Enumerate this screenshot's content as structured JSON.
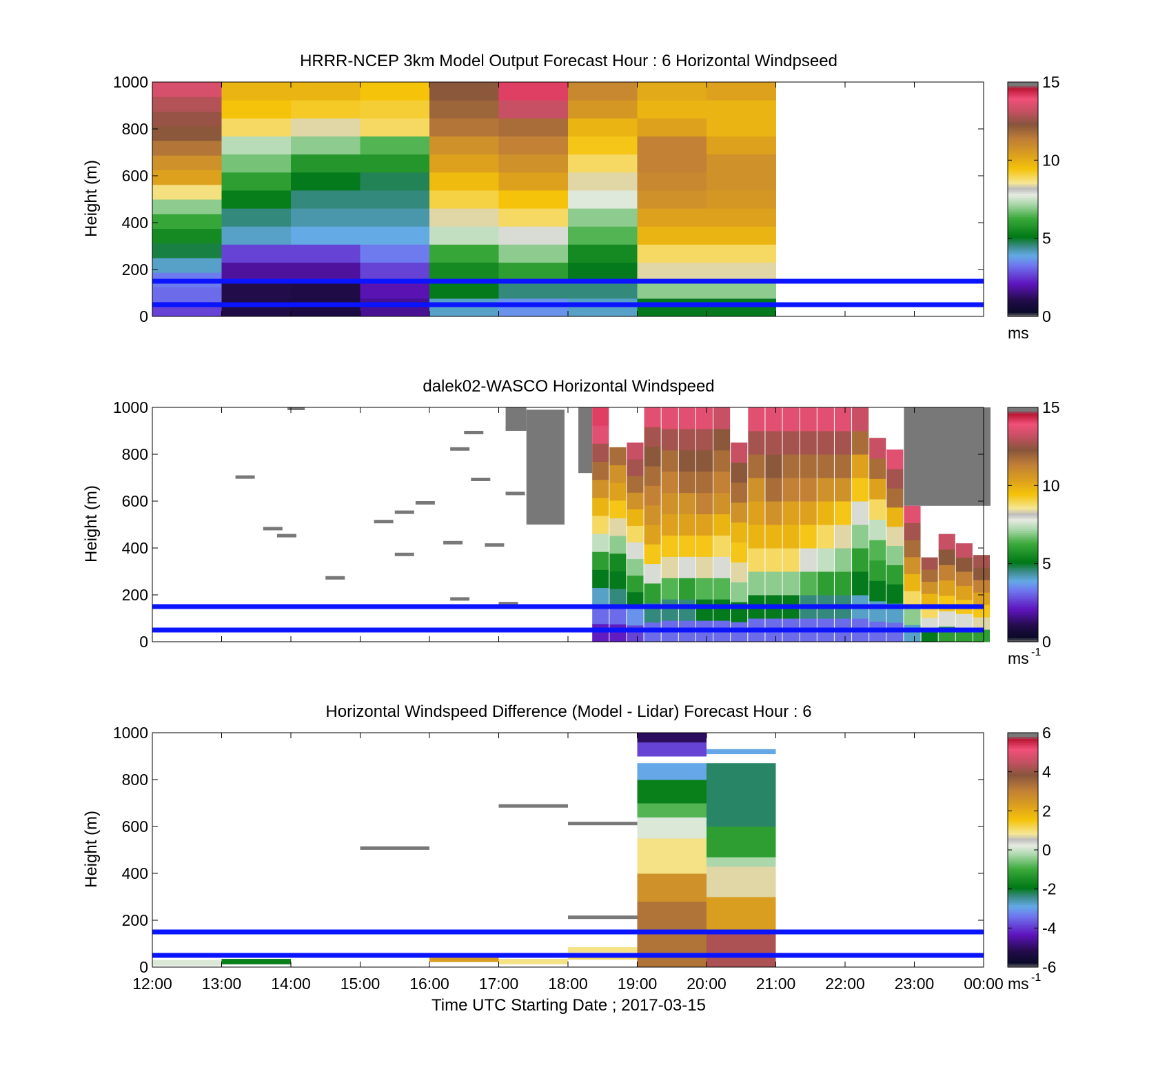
{
  "chart_data": [
    {
      "type": "heatmap",
      "title": "HRRR-NCEP 3km Model Output   Forecast Hour : 6 Horizontal Windpseed",
      "ylabel": "Height (m)",
      "ylim": [
        0,
        1000
      ],
      "yticks": [
        "0",
        "200",
        "400",
        "600",
        "800",
        "1000"
      ],
      "xlim_hours_utc": [
        12,
        24
      ],
      "colorbar": {
        "min": 0,
        "max": 15,
        "ticks": [
          "0",
          "5",
          "10",
          "15"
        ],
        "unit": "ms",
        "unit_sup": ""
      },
      "reference_lines_m": [
        150,
        50
      ],
      "reference_line_color": "#0a14ff",
      "columns": [
        {
          "start": 12,
          "end": 13,
          "speeds": [
            2.5,
            3,
            3.2,
            4,
            4.8,
            5.5,
            6.2,
            7,
            8.8,
            10.5,
            11,
            11.8,
            12.5,
            12.8,
            13.2,
            13.8
          ]
        },
        {
          "start": 13,
          "end": 14,
          "speeds": [
            0.7,
            0.8,
            1.6,
            2.5,
            4,
            4.5,
            5.2,
            6,
            6.8,
            7.4,
            9,
            9.6,
            10
          ]
        },
        {
          "start": 14,
          "end": 15,
          "speeds": [
            0.6,
            0.7,
            1.6,
            2.5,
            3.8,
            4.2,
            4.5,
            5,
            5.8,
            7,
            8.5,
            9.4,
            10
          ]
        },
        {
          "start": 15,
          "end": 16,
          "speeds": [
            1.5,
            1.8,
            2.5,
            3.2,
            3.8,
            4.2,
            4.5,
            4.7,
            5.8,
            6.5,
            9,
            9.3,
            9.6
          ]
        },
        {
          "start": 16,
          "end": 17,
          "speeds": [
            4,
            5,
            5.5,
            6.2,
            7.5,
            8.5,
            9.2,
            9.8,
            10.5,
            11,
            11.8,
            12.2,
            12.5
          ]
        },
        {
          "start": 17,
          "end": 18,
          "speeds": [
            3.5,
            4.5,
            6,
            7,
            8,
            9,
            9.6,
            10.5,
            11,
            11.5,
            12,
            13.5,
            14.5
          ]
        },
        {
          "start": 18,
          "end": 19,
          "speeds": [
            4,
            4.5,
            5,
            5.5,
            6.5,
            7,
            7.8,
            8.5,
            9,
            9.5,
            10,
            10.8,
            11.3
          ]
        },
        {
          "start": 19,
          "end": 20,
          "speeds": [
            5,
            7,
            8.5,
            9,
            10,
            10.5,
            11,
            11.3,
            11.5,
            11.5,
            10.5,
            10,
            10.3
          ]
        },
        {
          "start": 20,
          "end": 21,
          "speeds": [
            5,
            7,
            8.5,
            9,
            10,
            10.5,
            10.8,
            11,
            11,
            10.5,
            10,
            10,
            10.5
          ]
        }
      ]
    },
    {
      "type": "heatmap",
      "title": "dalek02-WASCO  Horizontal Windspeed",
      "ylabel": "Height (m)",
      "ylim": [
        0,
        1000
      ],
      "yticks": [
        "0",
        "200",
        "400",
        "600",
        "800",
        "1000"
      ],
      "xlim_hours_utc": [
        12,
        24
      ],
      "colorbar": {
        "min": 0,
        "max": 15,
        "ticks": [
          "0",
          "5",
          "10",
          "15"
        ],
        "unit": "ms",
        "unit_sup": "-1"
      },
      "reference_lines_m": [
        150,
        50
      ],
      "reference_line_color": "#0a14ff",
      "profiles": [
        {
          "start": 18.35,
          "end": 18.6,
          "top": 1000,
          "speeds": [
            2,
            3,
            4,
            5,
            6,
            7.5,
            9,
            10,
            11,
            12,
            13,
            14,
            14.5
          ]
        },
        {
          "start": 18.6,
          "end": 18.85,
          "top": 830,
          "speeds": [
            2,
            3,
            4.5,
            5,
            5.5,
            7,
            8.5,
            9.5,
            10.5,
            11,
            12
          ]
        },
        {
          "start": 18.85,
          "end": 19.1,
          "top": 850,
          "speeds": [
            2.5,
            3.5,
            5,
            6,
            7,
            8,
            9,
            10,
            11,
            12,
            13,
            13.5
          ]
        },
        {
          "start": 19.1,
          "end": 19.35,
          "top": 1000,
          "speeds": [
            3,
            4.5,
            6,
            8,
            9.5,
            10.5,
            11,
            11.5,
            12,
            12.5,
            13,
            14
          ]
        },
        {
          "start": 19.35,
          "end": 19.6,
          "top": 1000,
          "speeds": [
            3,
            4.5,
            6.5,
            8.5,
            9.5,
            10.5,
            11,
            11.5,
            12,
            13,
            14
          ]
        },
        {
          "start": 19.6,
          "end": 19.85,
          "top": 1000,
          "speeds": [
            3,
            4.5,
            6,
            8,
            9.5,
            10.5,
            11,
            12,
            12.5,
            13,
            14
          ]
        },
        {
          "start": 19.85,
          "end": 20.1,
          "top": 1000,
          "speeds": [
            3,
            5,
            6.5,
            8.5,
            9.5,
            10.5,
            11.5,
            12,
            12.5,
            13,
            14
          ]
        },
        {
          "start": 20.1,
          "end": 20.35,
          "top": 1000,
          "speeds": [
            3,
            5,
            6.5,
            8,
            9,
            10,
            11,
            11.5,
            12,
            12.5,
            13.5
          ]
        },
        {
          "start": 20.35,
          "end": 20.6,
          "top": 850,
          "speeds": [
            3,
            5,
            7,
            8.5,
            9.5,
            10,
            11,
            12,
            12.5,
            13.5
          ]
        },
        {
          "start": 20.6,
          "end": 20.85,
          "top": 1000,
          "speeds": [
            3,
            5,
            7,
            9,
            10,
            10.5,
            11,
            12,
            13,
            14
          ]
        },
        {
          "start": 20.85,
          "end": 21.1,
          "top": 1000,
          "speeds": [
            3,
            5,
            7,
            9,
            10,
            11,
            12,
            12.5,
            13,
            14
          ]
        },
        {
          "start": 21.1,
          "end": 21.35,
          "top": 1000,
          "speeds": [
            3,
            5,
            7,
            9,
            10,
            10.5,
            11.5,
            12,
            13,
            14
          ]
        },
        {
          "start": 21.35,
          "end": 21.6,
          "top": 1000,
          "speeds": [
            3,
            4.5,
            6.5,
            8,
            9.5,
            10.5,
            11.5,
            12,
            13,
            14
          ]
        },
        {
          "start": 21.6,
          "end": 21.85,
          "top": 1000,
          "speeds": [
            3,
            4.5,
            6,
            7.5,
            9,
            10,
            11,
            12,
            13,
            14
          ]
        },
        {
          "start": 21.85,
          "end": 22.1,
          "top": 1000,
          "speeds": [
            3,
            4.5,
            6,
            7,
            8.5,
            9.5,
            11,
            12,
            13,
            14
          ]
        },
        {
          "start": 22.1,
          "end": 22.35,
          "top": 1000,
          "speeds": [
            3,
            4,
            5,
            6,
            7,
            8,
            9.5,
            10.5,
            12,
            13.5
          ]
        },
        {
          "start": 22.35,
          "end": 22.6,
          "top": 870,
          "speeds": [
            3,
            4,
            5,
            6,
            6.5,
            7.5,
            9,
            10.5,
            12,
            13.5
          ]
        },
        {
          "start": 22.6,
          "end": 22.85,
          "top": 820,
          "speeds": [
            3,
            4,
            5,
            6,
            7,
            8.5,
            10,
            12,
            13,
            14
          ]
        },
        {
          "start": 22.85,
          "end": 23.1,
          "top": 580,
          "speeds": [
            4,
            7,
            9,
            10,
            11,
            12,
            13,
            14
          ]
        },
        {
          "start": 23.1,
          "end": 23.35,
          "top": 360,
          "speeds": [
            5,
            8,
            9,
            10,
            11,
            12,
            13
          ]
        },
        {
          "start": 23.35,
          "end": 23.6,
          "top": 460,
          "speeds": [
            6,
            8,
            9.5,
            10.5,
            11.5,
            12.5,
            13.5
          ]
        },
        {
          "start": 23.6,
          "end": 23.85,
          "top": 420,
          "speeds": [
            6,
            8,
            9.5,
            10.5,
            11.5,
            12.5,
            13.5
          ]
        },
        {
          "start": 23.85,
          "end": 24.1,
          "top": 370,
          "speeds": [
            6,
            8.5,
            9.5,
            10.5,
            11.5,
            12.5,
            13
          ]
        }
      ],
      "gray_blocks": [
        {
          "start": 13.95,
          "end": 14.2,
          "bottom": 1000,
          "top": 1000
        },
        {
          "start": 17.1,
          "end": 17.4,
          "bottom": 900,
          "top": 1000
        },
        {
          "start": 17.4,
          "end": 17.95,
          "bottom": 500,
          "top": 990
        },
        {
          "start": 18.15,
          "end": 18.35,
          "bottom": 720,
          "top": 1000
        },
        {
          "start": 22.85,
          "end": 24.1,
          "bottom": 580,
          "top": 1000
        }
      ],
      "sparse_gray": [
        {
          "x": 13.2,
          "h": 710
        },
        {
          "x": 13.6,
          "h": 490
        },
        {
          "x": 13.8,
          "h": 460
        },
        {
          "x": 14.5,
          "h": 280
        },
        {
          "x": 15.2,
          "h": 520
        },
        {
          "x": 15.5,
          "h": 560
        },
        {
          "x": 15.8,
          "h": 600
        },
        {
          "x": 15.5,
          "h": 380
        },
        {
          "x": 16.2,
          "h": 430
        },
        {
          "x": 16.3,
          "h": 830
        },
        {
          "x": 16.5,
          "h": 900
        },
        {
          "x": 16.6,
          "h": 700
        },
        {
          "x": 16.8,
          "h": 420
        },
        {
          "x": 17.1,
          "h": 640
        },
        {
          "x": 17.0,
          "h": 170
        },
        {
          "x": 16.3,
          "h": 190
        }
      ]
    },
    {
      "type": "heatmap",
      "title": "Horizontal Windspeed Difference (Model - Lidar) Forecast Hour : 6",
      "xlabel": "Time UTC  Starting Date ; 2017-03-15",
      "ylabel": "Height (m)",
      "ylim": [
        0,
        1000
      ],
      "yticks": [
        "0",
        "200",
        "400",
        "600",
        "800",
        "1000"
      ],
      "xticks": [
        "12:00",
        "13:00",
        "14:00",
        "15:00",
        "16:00",
        "17:00",
        "18:00",
        "19:00",
        "20:00",
        "21:00",
        "22:00",
        "23:00",
        "00:00"
      ],
      "xlim_hours_utc": [
        12,
        24
      ],
      "colorbar": {
        "min": -6,
        "max": 6,
        "ticks": [
          "-6",
          "-4",
          "-2",
          "0",
          "2",
          "4",
          "6"
        ],
        "unit": "ms",
        "unit_sup": "-1"
      },
      "reference_lines_m": [
        150,
        50
      ],
      "reference_line_color": "#0a14ff",
      "columns": [
        {
          "start": 19,
          "end": 20,
          "segments": [
            {
              "bottom": 0,
              "top": 280,
              "value": 3.5
            },
            {
              "bottom": 280,
              "top": 400,
              "value": 2.8
            },
            {
              "bottom": 400,
              "top": 550,
              "value": 1.0
            },
            {
              "bottom": 550,
              "top": 640,
              "value": 0.2
            },
            {
              "bottom": 640,
              "top": 700,
              "value": -0.8
            },
            {
              "bottom": 700,
              "top": 800,
              "value": -1.8
            },
            {
              "bottom": 800,
              "top": 870,
              "value": -3.0
            },
            {
              "bottom": 900,
              "top": 960,
              "value": -4.0
            },
            {
              "bottom": 960,
              "top": 1000,
              "value": -5.2
            }
          ]
        },
        {
          "start": 20,
          "end": 21,
          "segments": [
            {
              "bottom": 0,
              "top": 150,
              "value": 4.5
            },
            {
              "bottom": 150,
              "top": 300,
              "value": 2.5
            },
            {
              "bottom": 300,
              "top": 430,
              "value": 0.8
            },
            {
              "bottom": 430,
              "top": 470,
              "value": -0.2
            },
            {
              "bottom": 470,
              "top": 600,
              "value": -1.2
            },
            {
              "bottom": 600,
              "top": 870,
              "value": -2.3
            },
            {
              "bottom": 910,
              "top": 930,
              "value": -3.0
            }
          ]
        }
      ],
      "thin_bars": [
        {
          "start": 12.0,
          "end": 13.0,
          "height": 30,
          "value": 0.2
        },
        {
          "start": 13.0,
          "end": 14.0,
          "height": 35,
          "value": -1.8
        },
        {
          "start": 16.0,
          "end": 17.0,
          "height": 45,
          "value": 2.5
        },
        {
          "start": 17.0,
          "end": 18.0,
          "height": 35,
          "value": 1.0
        },
        {
          "start": 18.0,
          "end": 19.0,
          "height": 55,
          "value": 1.2
        },
        {
          "start": 18.0,
          "end": 19.0,
          "height": 85,
          "value": 1.0
        }
      ],
      "gray_lines": [
        {
          "start": 15.0,
          "end": 16.0,
          "height": 515
        },
        {
          "start": 17.0,
          "end": 18.0,
          "height": 695
        },
        {
          "start": 18.0,
          "end": 19.0,
          "height": 620
        },
        {
          "start": 18.0,
          "end": 19.0,
          "height": 220
        }
      ]
    }
  ]
}
